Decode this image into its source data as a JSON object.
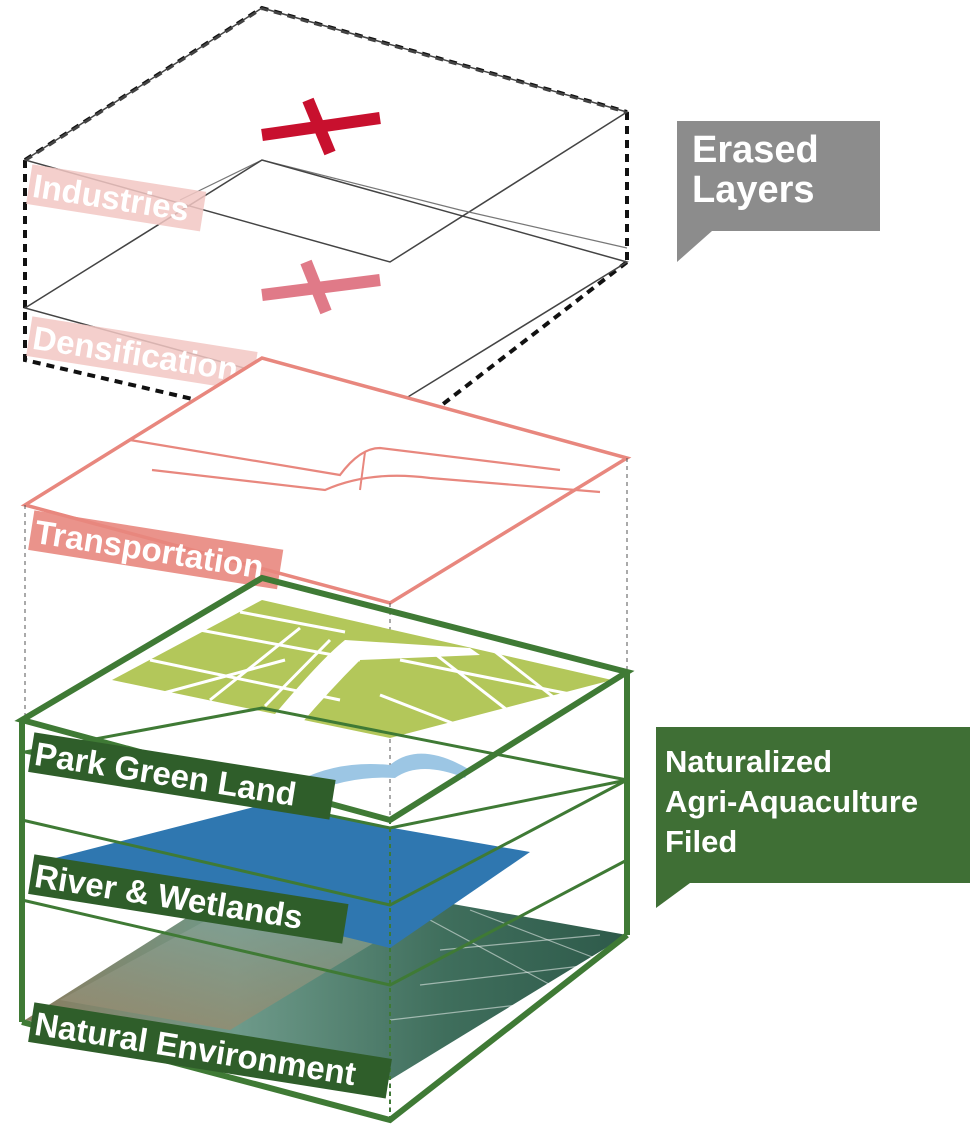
{
  "callouts": {
    "erased": {
      "line1": "Erased",
      "line2": "Layers",
      "color": "#8c8c8c"
    },
    "naturalized": {
      "line1": "Naturalized",
      "line2": "Agri-Aquaculture",
      "line3": "Filed",
      "color": "#3f6f35"
    }
  },
  "layers": [
    {
      "id": "industries",
      "label": "Industries",
      "status": "erased",
      "color": "#f2c7c3",
      "mark": "cross",
      "mark_color": "#c8102e"
    },
    {
      "id": "densification",
      "label": "Densification",
      "status": "erased",
      "color": "#f2c7c3",
      "mark": "cross",
      "mark_color": "#e07a88"
    },
    {
      "id": "transportation",
      "label": "Transportation",
      "status": "kept",
      "color": "#e8877e"
    },
    {
      "id": "park-green-land",
      "label": "Park Green Land",
      "status": "naturalized",
      "color": "#2f5e2a",
      "fill": "#b3c75a"
    },
    {
      "id": "river-wetlands",
      "label": "River & Wetlands",
      "status": "naturalized",
      "color": "#2f5e2a",
      "fill": "#2f77b0"
    },
    {
      "id": "natural-environment",
      "label": "Natural Environment",
      "status": "naturalized",
      "color": "#2f5e2a"
    }
  ],
  "colors": {
    "erased_outline": "#111111",
    "green_frame": "#3f7a35",
    "thin_line": "#444444",
    "river": "#2f77b0",
    "river_light": "#9cc6e4",
    "park_fill": "#b3c75a"
  }
}
